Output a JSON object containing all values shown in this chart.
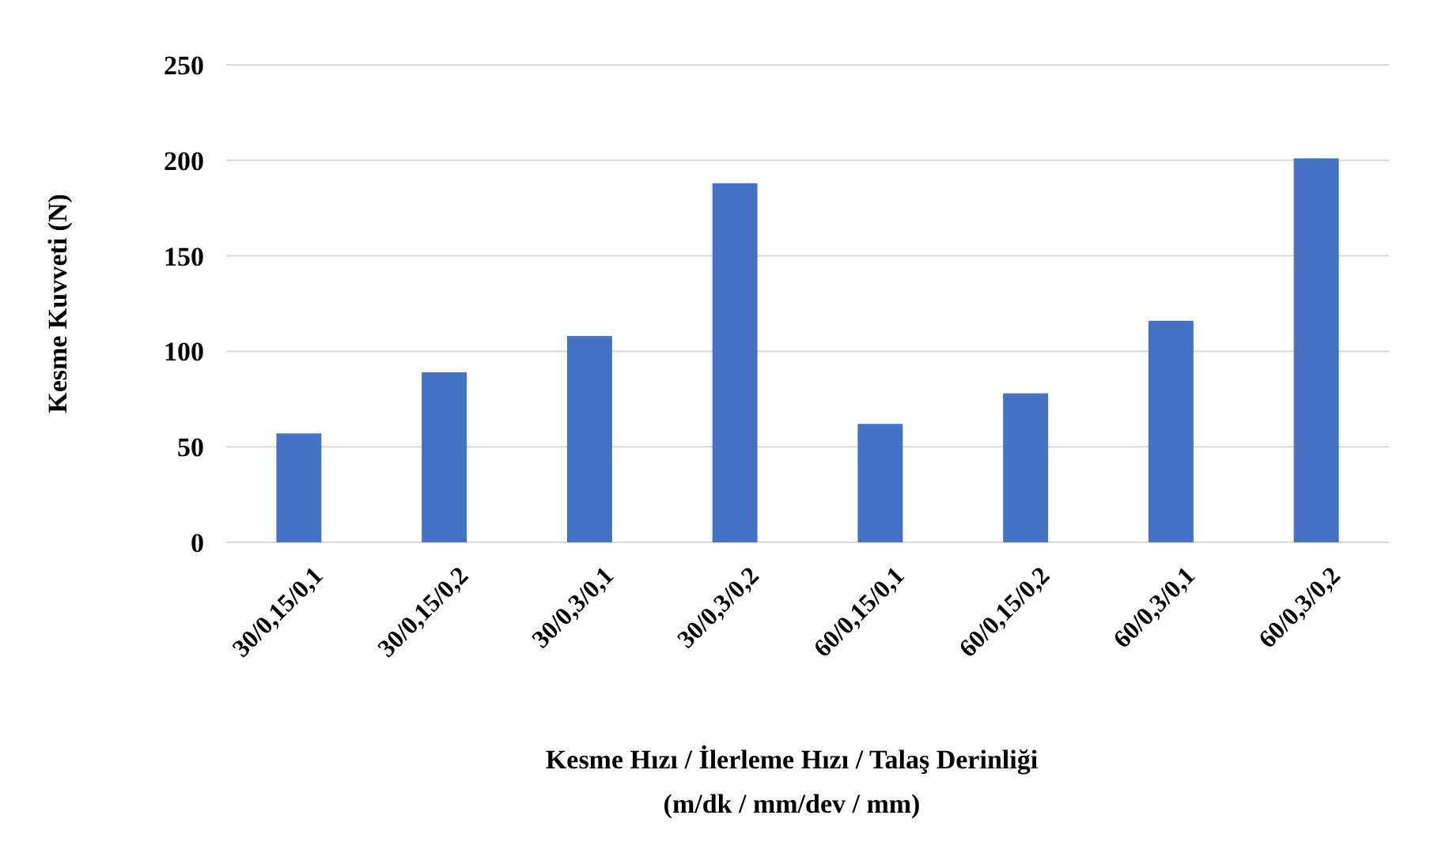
{
  "chart_data": {
    "type": "bar",
    "ylabel": "Kesme Kuvveti (N)",
    "xlabel": "Kesme Hızı / İlerleme Hızı / Talaş Derinliği\n(m/dk / mm/dev  / mm)",
    "categories": [
      "30/0,15/0,1",
      "30/0,15/0,2",
      "30/0,3/0,1",
      "30/0,3/0,2",
      "60/0,15/0,1",
      "60/0,15/0,2",
      "60/0,3/0,1",
      "60/0,3/0,2"
    ],
    "values": [
      57,
      89,
      108,
      188,
      62,
      78,
      116,
      201
    ],
    "color": "#4472c4",
    "ylim": [
      0,
      250
    ],
    "yticks": [
      0,
      50,
      100,
      150,
      200,
      250
    ],
    "grid": "y"
  }
}
